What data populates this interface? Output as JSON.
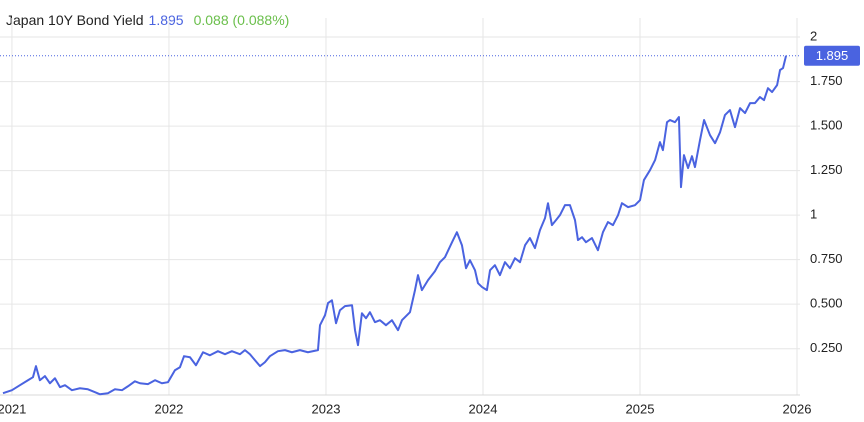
{
  "chart_data": {
    "type": "line",
    "title": "Japan 10Y Bond Yield",
    "last_value": 1.895,
    "change": "0.088 (0.088%)",
    "color": "#4a63e0",
    "change_color": "#6abf4b",
    "grid": true,
    "y_axis_side": "right",
    "xlim": [
      2020.924,
      2026.019
    ],
    "xticks": [
      2021,
      2022,
      2023,
      2024,
      2025,
      2026
    ],
    "ylim": [
      -0.01,
      2.107
    ],
    "yticks": [
      {
        "value": 0.25,
        "label": "0.250"
      },
      {
        "value": 0.5,
        "label": "0.500"
      },
      {
        "value": 0.75,
        "label": "0.750"
      },
      1,
      {
        "value": 1.25,
        "label": "1.250"
      },
      {
        "value": 1.5,
        "label": "1.500"
      },
      {
        "value": 1.75,
        "label": "1.750"
      },
      2
    ],
    "x": [
      2020.943,
      2021.0,
      2021.051,
      2021.102,
      2021.134,
      2021.153,
      2021.178,
      2021.21,
      2021.242,
      2021.274,
      2021.306,
      2021.338,
      2021.382,
      2021.433,
      2021.484,
      2021.529,
      2021.561,
      2021.611,
      2021.656,
      2021.701,
      2021.739,
      2021.783,
      2021.815,
      2021.866,
      2021.911,
      2021.955,
      2021.994,
      2022.038,
      2022.07,
      2022.096,
      2022.134,
      2022.172,
      2022.217,
      2022.261,
      2022.312,
      2022.357,
      2022.401,
      2022.452,
      2022.484,
      2022.516,
      2022.548,
      2022.58,
      2022.611,
      2022.643,
      2022.694,
      2022.739,
      2022.783,
      2022.834,
      2022.885,
      2022.949,
      2022.962,
      2022.994,
      2023.013,
      2023.038,
      2023.064,
      2023.089,
      2023.121,
      2023.166,
      2023.185,
      2023.204,
      2023.229,
      2023.255,
      2023.28,
      2023.312,
      2023.344,
      2023.382,
      2023.42,
      2023.459,
      2023.484,
      2023.535,
      2023.567,
      2023.586,
      2023.611,
      2023.65,
      2023.694,
      2023.726,
      2023.758,
      2023.803,
      2023.834,
      2023.866,
      2023.892,
      2023.917,
      2023.949,
      2023.968,
      2023.994,
      2024.025,
      2024.045,
      2024.076,
      2024.108,
      2024.14,
      2024.172,
      2024.204,
      2024.236,
      2024.268,
      2024.299,
      2024.331,
      2024.363,
      2024.395,
      2024.414,
      2024.439,
      2024.465,
      2024.49,
      2024.522,
      2024.554,
      2024.586,
      2024.605,
      2024.631,
      2024.656,
      2024.694,
      2024.732,
      2024.764,
      2024.796,
      2024.828,
      2024.86,
      2024.885,
      2024.924,
      2024.968,
      2025.0,
      2025.025,
      2025.064,
      2025.096,
      2025.127,
      2025.146,
      2025.172,
      2025.191,
      2025.223,
      2025.248,
      2025.261,
      2025.28,
      2025.306,
      2025.331,
      2025.35,
      2025.382,
      2025.408,
      2025.446,
      2025.478,
      2025.51,
      2025.541,
      2025.573,
      2025.605,
      2025.637,
      2025.669,
      2025.701,
      2025.732,
      2025.764,
      2025.79,
      2025.815,
      2025.841,
      2025.873,
      2025.892,
      2025.911,
      2025.93
    ],
    "values": [
      0.0,
      0.017,
      0.045,
      0.073,
      0.09,
      0.152,
      0.073,
      0.096,
      0.056,
      0.084,
      0.034,
      0.045,
      0.017,
      0.028,
      0.022,
      0.006,
      -0.006,
      0.0,
      0.022,
      0.017,
      0.039,
      0.067,
      0.056,
      0.051,
      0.073,
      0.056,
      0.062,
      0.129,
      0.146,
      0.208,
      0.202,
      0.157,
      0.23,
      0.213,
      0.236,
      0.219,
      0.236,
      0.219,
      0.242,
      0.219,
      0.185,
      0.152,
      0.174,
      0.208,
      0.236,
      0.242,
      0.23,
      0.242,
      0.23,
      0.242,
      0.382,
      0.438,
      0.506,
      0.522,
      0.393,
      0.466,
      0.489,
      0.494,
      0.354,
      0.27,
      0.449,
      0.421,
      0.455,
      0.399,
      0.41,
      0.382,
      0.41,
      0.354,
      0.41,
      0.455,
      0.579,
      0.663,
      0.579,
      0.635,
      0.685,
      0.736,
      0.764,
      0.848,
      0.904,
      0.831,
      0.702,
      0.747,
      0.691,
      0.618,
      0.596,
      0.579,
      0.691,
      0.719,
      0.663,
      0.736,
      0.702,
      0.758,
      0.736,
      0.831,
      0.871,
      0.815,
      0.916,
      0.983,
      1.067,
      0.944,
      0.972,
      1.0,
      1.056,
      1.056,
      0.972,
      0.86,
      0.876,
      0.848,
      0.871,
      0.803,
      0.904,
      0.961,
      0.944,
      1.0,
      1.067,
      1.045,
      1.056,
      1.084,
      1.197,
      1.253,
      1.309,
      1.41,
      1.365,
      1.522,
      1.534,
      1.522,
      1.551,
      1.157,
      1.337,
      1.264,
      1.331,
      1.27,
      1.421,
      1.534,
      1.449,
      1.404,
      1.466,
      1.562,
      1.59,
      1.494,
      1.601,
      1.573,
      1.629,
      1.629,
      1.663,
      1.646,
      1.713,
      1.691,
      1.73,
      1.815,
      1.826,
      1.895
    ]
  }
}
